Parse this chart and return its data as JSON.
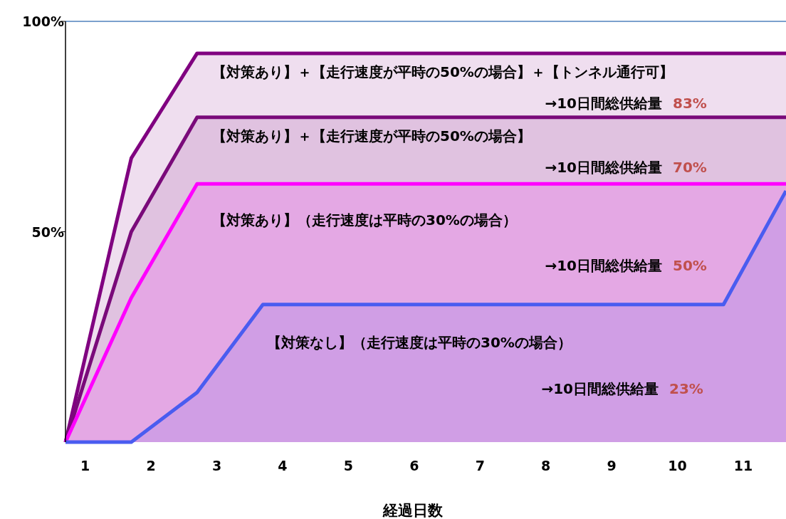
{
  "chart_data": {
    "type": "area",
    "xlabel": "経過日数",
    "xlim": [
      0.7,
      11.65
    ],
    "xticks": [
      1,
      2,
      3,
      4,
      5,
      6,
      7,
      8,
      9,
      10,
      11
    ],
    "ylim": [
      0,
      100
    ],
    "yticks": [
      {
        "value": 50,
        "label": "50%"
      },
      {
        "value": 100,
        "label": "100%"
      }
    ],
    "grid": false,
    "series": [
      {
        "color": "#800080",
        "x": [
          0.7,
          1.7,
          2.7,
          11.65
        ],
        "values": [
          0,
          67.5,
          92.4,
          92.4
        ]
      },
      {
        "color": "#7a0a7a",
        "x": [
          0.7,
          1.7,
          2.7,
          11.65
        ],
        "values": [
          0,
          50,
          77.2,
          77.2
        ]
      },
      {
        "color": "#ff00ff",
        "x": [
          0.7,
          1.7,
          2.7,
          11.65
        ],
        "values": [
          0,
          34.3,
          61.4,
          61.4
        ]
      },
      {
        "color": "#4a5cf0",
        "x": [
          0.7,
          1.7,
          2.7,
          3.7,
          10.7,
          11.65
        ],
        "values": [
          0,
          0,
          11.8,
          32.7,
          32.7,
          59.7
        ]
      }
    ],
    "annotations": [
      "【対策あり】＋【走行速度が平時の50%の場合】＋【トンネル通行可】",
      "→10日間総供給量",
      "83%",
      "【対策あり】＋【走行速度が平時の50%の場合】",
      "→10日間総供給量",
      "70%",
      "【対策あり】（走行速度は平時の30%の場合）",
      "→10日間総供給量",
      "50%",
      "【対策なし】（走行速度は平時の30%の場合）",
      "→10日間総供給量",
      "23%"
    ]
  }
}
